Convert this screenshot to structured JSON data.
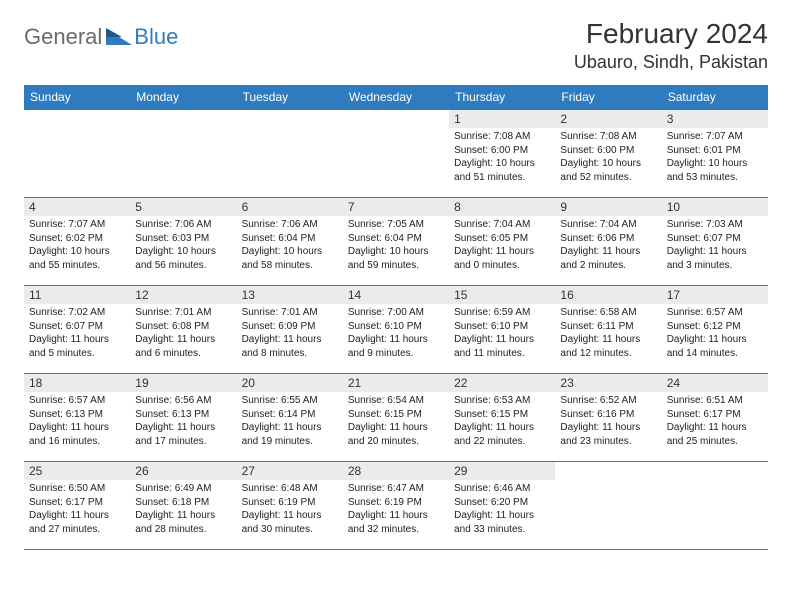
{
  "brand": {
    "word1": "General",
    "word2": "Blue",
    "color_gray": "#6b6b6b",
    "color_blue": "#2f7bbf"
  },
  "title": "February 2024",
  "location": "Ubauro, Sindh, Pakistan",
  "theme": {
    "header_bg": "#2f7bbf",
    "daynum_bg": "#ebebeb",
    "border": "#2f7bbf",
    "text": "#222222"
  },
  "day_headers": [
    "Sunday",
    "Monday",
    "Tuesday",
    "Wednesday",
    "Thursday",
    "Friday",
    "Saturday"
  ],
  "weeks": [
    [
      null,
      null,
      null,
      null,
      {
        "n": "1",
        "sr": "7:08 AM",
        "ss": "6:00 PM",
        "dh": 10,
        "dm": 51
      },
      {
        "n": "2",
        "sr": "7:08 AM",
        "ss": "6:00 PM",
        "dh": 10,
        "dm": 52
      },
      {
        "n": "3",
        "sr": "7:07 AM",
        "ss": "6:01 PM",
        "dh": 10,
        "dm": 53
      }
    ],
    [
      {
        "n": "4",
        "sr": "7:07 AM",
        "ss": "6:02 PM",
        "dh": 10,
        "dm": 55
      },
      {
        "n": "5",
        "sr": "7:06 AM",
        "ss": "6:03 PM",
        "dh": 10,
        "dm": 56
      },
      {
        "n": "6",
        "sr": "7:06 AM",
        "ss": "6:04 PM",
        "dh": 10,
        "dm": 58
      },
      {
        "n": "7",
        "sr": "7:05 AM",
        "ss": "6:04 PM",
        "dh": 10,
        "dm": 59
      },
      {
        "n": "8",
        "sr": "7:04 AM",
        "ss": "6:05 PM",
        "dh": 11,
        "dm": 0
      },
      {
        "n": "9",
        "sr": "7:04 AM",
        "ss": "6:06 PM",
        "dh": 11,
        "dm": 2
      },
      {
        "n": "10",
        "sr": "7:03 AM",
        "ss": "6:07 PM",
        "dh": 11,
        "dm": 3
      }
    ],
    [
      {
        "n": "11",
        "sr": "7:02 AM",
        "ss": "6:07 PM",
        "dh": 11,
        "dm": 5
      },
      {
        "n": "12",
        "sr": "7:01 AM",
        "ss": "6:08 PM",
        "dh": 11,
        "dm": 6
      },
      {
        "n": "13",
        "sr": "7:01 AM",
        "ss": "6:09 PM",
        "dh": 11,
        "dm": 8
      },
      {
        "n": "14",
        "sr": "7:00 AM",
        "ss": "6:10 PM",
        "dh": 11,
        "dm": 9
      },
      {
        "n": "15",
        "sr": "6:59 AM",
        "ss": "6:10 PM",
        "dh": 11,
        "dm": 11
      },
      {
        "n": "16",
        "sr": "6:58 AM",
        "ss": "6:11 PM",
        "dh": 11,
        "dm": 12
      },
      {
        "n": "17",
        "sr": "6:57 AM",
        "ss": "6:12 PM",
        "dh": 11,
        "dm": 14
      }
    ],
    [
      {
        "n": "18",
        "sr": "6:57 AM",
        "ss": "6:13 PM",
        "dh": 11,
        "dm": 16
      },
      {
        "n": "19",
        "sr": "6:56 AM",
        "ss": "6:13 PM",
        "dh": 11,
        "dm": 17
      },
      {
        "n": "20",
        "sr": "6:55 AM",
        "ss": "6:14 PM",
        "dh": 11,
        "dm": 19
      },
      {
        "n": "21",
        "sr": "6:54 AM",
        "ss": "6:15 PM",
        "dh": 11,
        "dm": 20
      },
      {
        "n": "22",
        "sr": "6:53 AM",
        "ss": "6:15 PM",
        "dh": 11,
        "dm": 22
      },
      {
        "n": "23",
        "sr": "6:52 AM",
        "ss": "6:16 PM",
        "dh": 11,
        "dm": 23
      },
      {
        "n": "24",
        "sr": "6:51 AM",
        "ss": "6:17 PM",
        "dh": 11,
        "dm": 25
      }
    ],
    [
      {
        "n": "25",
        "sr": "6:50 AM",
        "ss": "6:17 PM",
        "dh": 11,
        "dm": 27
      },
      {
        "n": "26",
        "sr": "6:49 AM",
        "ss": "6:18 PM",
        "dh": 11,
        "dm": 28
      },
      {
        "n": "27",
        "sr": "6:48 AM",
        "ss": "6:19 PM",
        "dh": 11,
        "dm": 30
      },
      {
        "n": "28",
        "sr": "6:47 AM",
        "ss": "6:19 PM",
        "dh": 11,
        "dm": 32
      },
      {
        "n": "29",
        "sr": "6:46 AM",
        "ss": "6:20 PM",
        "dh": 11,
        "dm": 33
      },
      null,
      null
    ]
  ],
  "labels": {
    "sunrise": "Sunrise:",
    "sunset": "Sunset:",
    "daylight_prefix": "Daylight:",
    "hours_word": "hours",
    "and_word": "and",
    "minutes_word": "minutes."
  }
}
